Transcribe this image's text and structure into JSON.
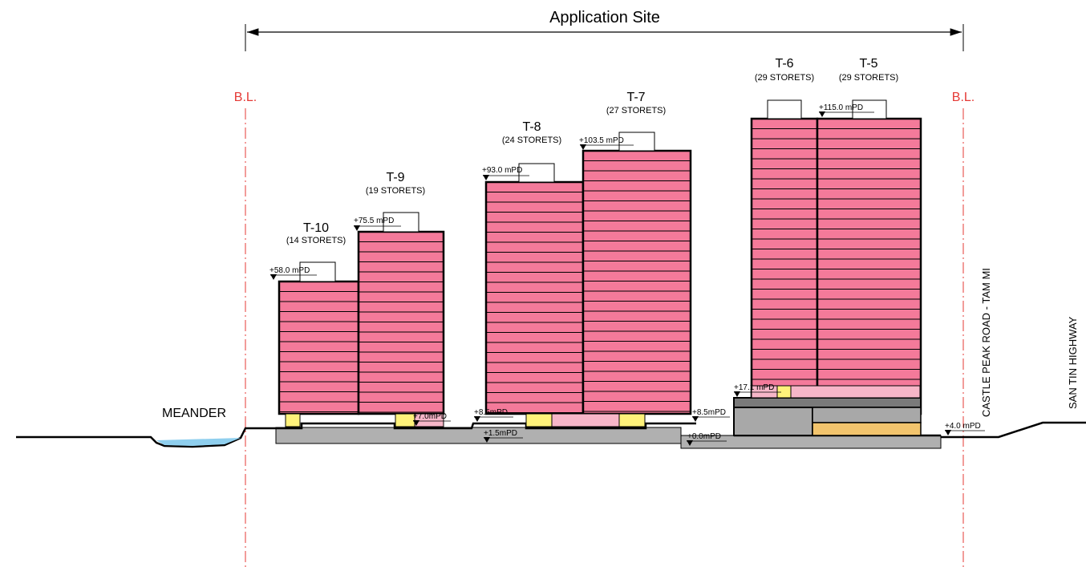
{
  "title": "Application Site",
  "boundary_label": "B.L.",
  "meander_label": "MEANDER",
  "road_label": "CASTLE PEAK ROAD - TAM MI",
  "highway_label": "SAN TIN HIGHWAY",
  "colors": {
    "tower_fill": "#f47a9a",
    "podium_pink": "#f7b6c8",
    "yellow": "#fff27a",
    "ground_grey": "#b0b0b0",
    "dark_grey": "#7a7a7a",
    "orange": "#f2c46d",
    "water": "#8fcfee",
    "boundary": "#e53935"
  },
  "towers": [
    {
      "name": "T-10",
      "storeys": "(14 STORETS)",
      "level": "+58.0 mPD"
    },
    {
      "name": "T-9",
      "storeys": "(19 STORETS)",
      "level": "+75.5 mPD"
    },
    {
      "name": "T-8",
      "storeys": "(24 STORETS)",
      "level": "+93.0 mPD"
    },
    {
      "name": "T-7",
      "storeys": "(27 STORETS)",
      "level": "+103.5 mPD"
    },
    {
      "name": "T-6",
      "storeys": "(29 STORETS)",
      "level": ""
    },
    {
      "name": "T-5",
      "storeys": "(29 STORETS)",
      "level": "+115.0 mPD"
    }
  ],
  "levels": {
    "l_7_0": "+7.0mPD",
    "l_8_5a": "+8.5mPD",
    "l_1_5": "+1.5mPD",
    "l_8_5b": "+8.5mPD",
    "l_0_0": "+0.0mPD",
    "l_17_1": "+17.1 mPD",
    "l_4_0": "+4.0 mPD"
  }
}
